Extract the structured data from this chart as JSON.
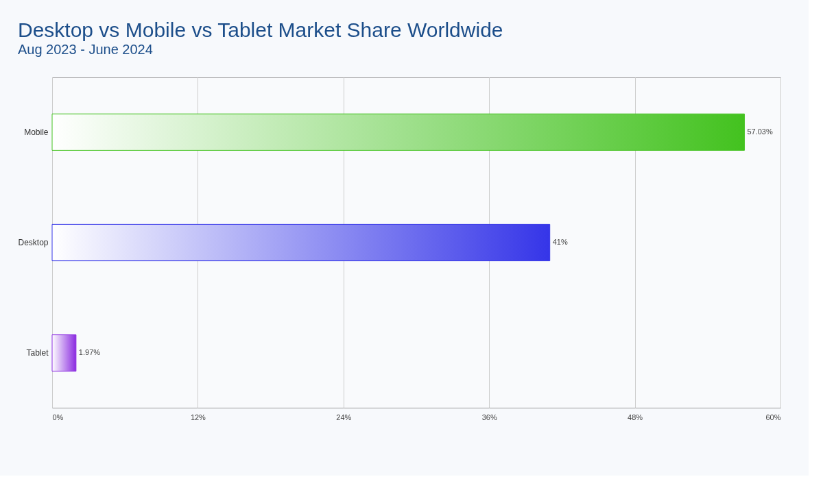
{
  "chart_data": {
    "type": "bar",
    "orientation": "horizontal",
    "title": "Desktop vs Mobile vs Tablet Market Share Worldwide",
    "subtitle": "Aug 2023 - June 2024",
    "categories": [
      "Mobile",
      "Desktop",
      "Tablet"
    ],
    "values": [
      57.03,
      41,
      1.97
    ],
    "colors": [
      "#43c21f",
      "#3535e8",
      "#8b2be0"
    ],
    "value_labels": [
      "57.03%",
      "41%",
      "1.97%"
    ],
    "xlim": [
      0,
      60
    ],
    "xticks": [
      {
        "value": 0,
        "label": "0%"
      },
      {
        "value": 12,
        "label": "12%"
      },
      {
        "value": 24,
        "label": "24%"
      },
      {
        "value": 36,
        "label": "36%"
      },
      {
        "value": 48,
        "label": "48%"
      },
      {
        "value": 60,
        "label": "60%"
      }
    ],
    "grid": "x",
    "legend": false
  }
}
